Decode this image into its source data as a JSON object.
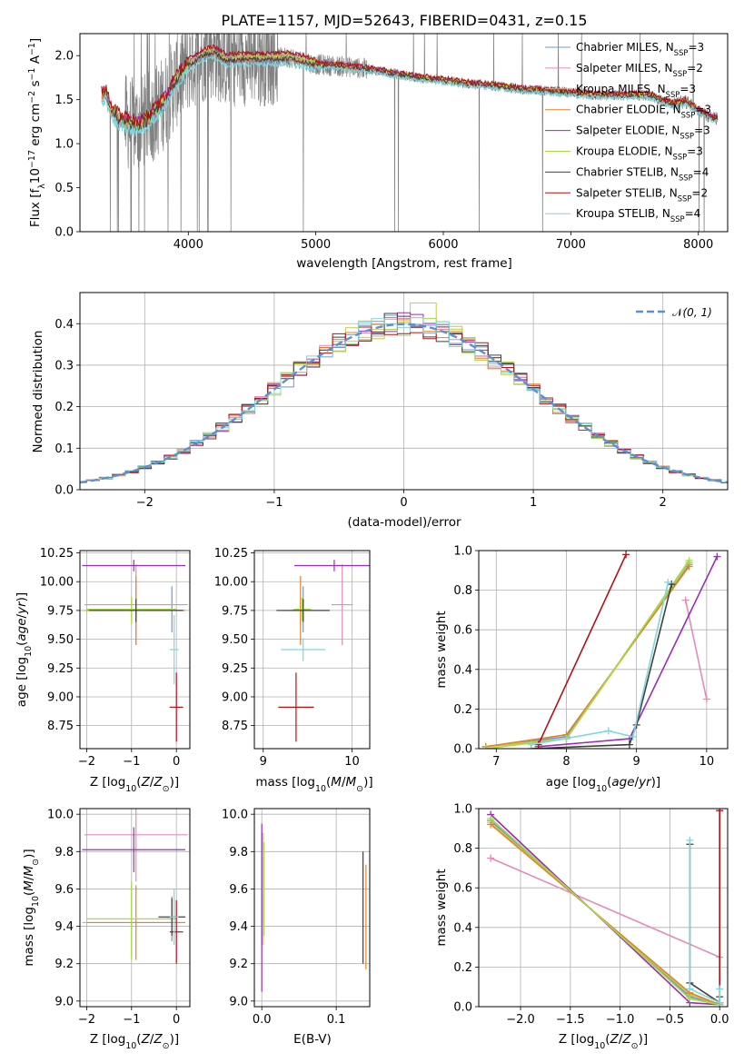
{
  "colors": {
    "Chabrier MILES": "#6f97d8",
    "Salpeter MILES": "#e48ab8",
    "Kroupa MILES": "#c5cc3a",
    "Chabrier ELODIE": "#e0842e",
    "Salpeter ELODIE": "#9a2eb5",
    "Kroupa ELODIE": "#a6d84a",
    "Chabrier STELIB": "#404040",
    "Salpeter STELIB": "#b0121a",
    "Kroupa STELIB": "#7fd6dc",
    "data": "#808080",
    "gaussian": "#5b8fd6"
  },
  "chart_data": [
    {
      "id": "spectrum",
      "type": "line",
      "title": "PLATE=1157, MJD=52643, FIBERID=0431, z=0.15",
      "xlabel": "wavelength [Angstrom, rest frame]",
      "ylabel": "Flux [f_λ10^-17 erg cm^-2 s^-1 A^-1]",
      "xlim": [
        3150,
        8230
      ],
      "ylim": [
        0,
        2.25
      ],
      "xticks": [
        4000,
        5000,
        6000,
        7000,
        8000
      ],
      "yticks": [
        0.0,
        0.5,
        1.0,
        1.5,
        2.0
      ],
      "grid": false,
      "legend_position": "upper right",
      "legend": [
        {
          "name": "Chabrier MILES",
          "nssp": "3"
        },
        {
          "name": "Salpeter MILES",
          "nssp": "2"
        },
        {
          "name": "Kroupa MILES",
          "nssp": "3"
        },
        {
          "name": "Chabrier ELODIE",
          "nssp": "3"
        },
        {
          "name": "Salpeter ELODIE",
          "nssp": "3"
        },
        {
          "name": "Kroupa ELODIE",
          "nssp": "3"
        },
        {
          "name": "Chabrier STELIB",
          "nssp": "4"
        },
        {
          "name": "Salpeter STELIB",
          "nssp": "2"
        },
        {
          "name": "Kroupa STELIB",
          "nssp": "4"
        }
      ],
      "model_curve": {
        "x": [
          3320,
          3350,
          3400,
          3500,
          3600,
          3700,
          3800,
          3900,
          4000,
          4100,
          4200,
          4300,
          4400,
          4600,
          4800,
          5000,
          5200,
          5400,
          5600,
          5800,
          6000,
          6200,
          6400,
          6600,
          6800,
          7000,
          7200,
          7400,
          7600,
          7700,
          7800,
          7900,
          8000,
          8100,
          8150
        ],
        "y": [
          1.55,
          1.58,
          1.35,
          1.25,
          1.2,
          1.3,
          1.45,
          1.7,
          1.9,
          2.0,
          2.05,
          1.95,
          1.97,
          1.97,
          1.98,
          1.9,
          1.88,
          1.85,
          1.8,
          1.75,
          1.72,
          1.68,
          1.66,
          1.62,
          1.6,
          1.58,
          1.55,
          1.55,
          1.55,
          1.5,
          1.45,
          1.48,
          1.38,
          1.3,
          1.28
        ]
      },
      "offsets": [
        -0.05,
        0.02,
        0.05,
        -0.03,
        0.06,
        0.04,
        -0.02,
        0.1,
        -0.12
      ]
    },
    {
      "id": "residuals",
      "type": "step",
      "xlabel": "(data-model)/error",
      "ylabel": "Normed distribution",
      "xlim": [
        -2.5,
        2.5
      ],
      "ylim": [
        0,
        0.475
      ],
      "xticks": [
        -2,
        -1,
        0,
        1,
        2
      ],
      "yticks": [
        0.0,
        0.1,
        0.2,
        0.3,
        0.4
      ],
      "grid": true,
      "legend_position": "upper right",
      "legend": [
        {
          "name": "N(0,1)"
        }
      ]
    },
    {
      "id": "age-vs-Z",
      "type": "errorbar",
      "xlabel": "Z [log10(Z/Z⊙)]",
      "ylabel": "age [log10(age/yr)]",
      "xlim": [
        -2.15,
        0.3
      ],
      "ylim": [
        8.55,
        10.27
      ],
      "xticks": [
        -2,
        -1,
        0
      ],
      "yticks": [
        8.75,
        9.0,
        9.25,
        9.5,
        9.75,
        10.0,
        10.25
      ],
      "grid": true,
      "points": [
        {
          "series": "Chabrier MILES",
          "x": -0.1,
          "y": 9.76,
          "xerr": 0.08,
          "yerr": 0.2
        },
        {
          "series": "Salpeter MILES",
          "x": -0.9,
          "y": 9.8,
          "xerr": 1.15,
          "yerr": 0.35
        },
        {
          "series": "Kroupa MILES",
          "x": -1.0,
          "y": 9.75,
          "xerr": 1.1,
          "yerr": 0.12
        },
        {
          "series": "Chabrier ELODIE",
          "x": -0.9,
          "y": 9.75,
          "xerr": 1.1,
          "yerr": 0.3
        },
        {
          "series": "Salpeter ELODIE",
          "x": -0.95,
          "y": 10.14,
          "xerr": 1.15,
          "yerr": 0.05
        },
        {
          "series": "Kroupa ELODIE",
          "x": -1.0,
          "y": 9.76,
          "xerr": 1.0,
          "yerr": 0.1
        },
        {
          "series": "Chabrier STELIB",
          "x": -0.9,
          "y": 9.75,
          "xerr": 1.05,
          "yerr": 0.1
        },
        {
          "series": "Salpeter STELIB",
          "x": 0.0,
          "y": 8.91,
          "xerr": 0.15,
          "yerr": 0.3
        },
        {
          "series": "Kroupa STELIB",
          "x": -0.05,
          "y": 9.41,
          "xerr": 0.1,
          "yerr": 0.3
        }
      ]
    },
    {
      "id": "age-vs-mass",
      "type": "errorbar",
      "xlabel": "mass [log10(M/M⊙)]",
      "ylabel": "",
      "xlim": [
        8.9,
        10.2
      ],
      "ylim": [
        8.55,
        10.27
      ],
      "xticks": [
        9,
        10
      ],
      "yticks": [
        8.75,
        9.0,
        9.25,
        9.5,
        9.75,
        10.0,
        10.25
      ],
      "grid": true,
      "points": [
        {
          "series": "Chabrier MILES",
          "x": 9.45,
          "y": 9.76,
          "xerr": 0.05,
          "yerr": 0.2
        },
        {
          "series": "Salpeter MILES",
          "x": 9.89,
          "y": 9.8,
          "xerr": 0.12,
          "yerr": 0.35
        },
        {
          "series": "Kroupa MILES",
          "x": 9.42,
          "y": 9.75,
          "xerr": 0.1,
          "yerr": 0.12
        },
        {
          "series": "Chabrier ELODIE",
          "x": 9.42,
          "y": 9.75,
          "xerr": 0.1,
          "yerr": 0.3
        },
        {
          "series": "Salpeter ELODIE",
          "x": 9.8,
          "y": 10.14,
          "xerr": 0.45,
          "yerr": 0.05
        },
        {
          "series": "Kroupa ELODIE",
          "x": 9.44,
          "y": 9.76,
          "xerr": 0.1,
          "yerr": 0.1
        },
        {
          "series": "Chabrier STELIB",
          "x": 9.45,
          "y": 9.75,
          "xerr": 0.3,
          "yerr": 0.1
        },
        {
          "series": "Salpeter STELIB",
          "x": 9.37,
          "y": 8.91,
          "xerr": 0.2,
          "yerr": 0.3
        },
        {
          "series": "Kroupa STELIB",
          "x": 9.45,
          "y": 9.41,
          "xerr": 0.25,
          "yerr": 0.1
        }
      ]
    },
    {
      "id": "weight-vs-age",
      "type": "line",
      "xlabel": "age [log10(age/yr)]",
      "ylabel": "mass weight",
      "xlim": [
        6.75,
        10.3
      ],
      "ylim": [
        0,
        1.0
      ],
      "xticks": [
        7,
        8,
        9,
        10
      ],
      "yticks": [
        0.0,
        0.2,
        0.4,
        0.6,
        0.8,
        1.0
      ],
      "grid": true,
      "series": [
        {
          "name": "Chabrier MILES",
          "x": [
            6.85,
            8.0,
            9.75
          ],
          "y": [
            0.01,
            0.06,
            0.93
          ]
        },
        {
          "name": "Salpeter MILES",
          "x": [
            9.7,
            10.0
          ],
          "y": [
            0.75,
            0.25
          ]
        },
        {
          "name": "Kroupa MILES",
          "x": [
            6.85,
            8.0,
            9.75
          ],
          "y": [
            0.01,
            0.05,
            0.94
          ]
        },
        {
          "name": "Chabrier ELODIE",
          "x": [
            6.85,
            8.0,
            9.75
          ],
          "y": [
            0.01,
            0.07,
            0.92
          ]
        },
        {
          "name": "Salpeter ELODIE",
          "x": [
            7.6,
            8.9,
            10.15
          ],
          "y": [
            0.01,
            0.05,
            0.97
          ]
        },
        {
          "name": "Kroupa ELODIE",
          "x": [
            6.85,
            8.0,
            9.75
          ],
          "y": [
            0.0,
            0.05,
            0.95
          ]
        },
        {
          "name": "Chabrier STELIB",
          "x": [
            7.5,
            8.9,
            9.0,
            9.5
          ],
          "y": [
            0.0,
            0.02,
            0.12,
            0.83
          ]
        },
        {
          "name": "Salpeter STELIB",
          "x": [
            7.6,
            8.85
          ],
          "y": [
            0.02,
            0.98
          ]
        },
        {
          "name": "Kroupa STELIB",
          "x": [
            7.5,
            8.6,
            8.95,
            9.45
          ],
          "y": [
            0.02,
            0.09,
            0.06,
            0.84
          ]
        }
      ]
    },
    {
      "id": "mass-vs-Z",
      "type": "errorbar",
      "xlabel": "Z [log10(Z/Z⊙)]",
      "ylabel": "mass [log10(M/M⊙)]",
      "xlim": [
        -2.15,
        0.3
      ],
      "ylim": [
        8.97,
        10.03
      ],
      "xticks": [
        -2,
        -1,
        0
      ],
      "yticks": [
        9.0,
        9.2,
        9.4,
        9.6,
        9.8,
        10.0
      ],
      "grid": true,
      "points": [
        {
          "series": "Chabrier MILES",
          "x": -0.1,
          "y": 9.44,
          "xerr": 0.1,
          "yerr": 0.12
        },
        {
          "series": "Salpeter MILES",
          "x": -0.9,
          "y": 9.89,
          "xerr": 1.15,
          "yerr": 0.25
        },
        {
          "series": "Kroupa MILES",
          "x": -1.0,
          "y": 9.42,
          "xerr": 1.1,
          "yerr": 0.2
        },
        {
          "series": "Chabrier ELODIE",
          "x": -0.9,
          "y": 9.42,
          "xerr": 1.1,
          "yerr": 0.2
        },
        {
          "series": "Salpeter ELODIE",
          "x": -0.95,
          "y": 9.81,
          "xerr": 1.15,
          "yerr": 0.12
        },
        {
          "series": "Kroupa ELODIE",
          "x": -1.0,
          "y": 9.44,
          "xerr": 1.0,
          "yerr": 0.2
        },
        {
          "series": "Chabrier STELIB",
          "x": -0.1,
          "y": 9.45,
          "xerr": 0.3,
          "yerr": 0.1
        },
        {
          "series": "Salpeter STELIB",
          "x": 0.0,
          "y": 9.37,
          "xerr": 0.15,
          "yerr": 0.17
        },
        {
          "series": "Kroupa STELIB",
          "x": -0.05,
          "y": 9.45,
          "xerr": 0.1,
          "yerr": 0.15
        }
      ]
    },
    {
      "id": "mass-vs-EBV",
      "type": "errorbar",
      "xlabel": "E(B-V)",
      "ylabel": "",
      "xlim": [
        -0.01,
        0.145
      ],
      "ylim": [
        8.97,
        10.03
      ],
      "xticks": [
        0.0,
        0.1
      ],
      "yticks": [
        9.0,
        9.2,
        9.4,
        9.6,
        9.8,
        10.0
      ],
      "grid": true,
      "points": [
        {
          "series": "Chabrier MILES",
          "x": 0.0,
          "y": 9.6,
          "yerr": 0.3
        },
        {
          "series": "Kroupa MILES",
          "x": 0.002,
          "y": 9.6,
          "yerr": 0.3
        },
        {
          "series": "Salpeter ELODIE",
          "x": 0.0,
          "y": 9.5,
          "yerr": 0.45
        },
        {
          "series": "Kroupa ELODIE",
          "x": 0.003,
          "y": 9.6,
          "yerr": 0.25
        },
        {
          "series": "Chabrier STELIB",
          "x": 0.136,
          "y": 9.5,
          "yerr": 0.3
        },
        {
          "series": "Chabrier ELODIE",
          "x": 0.14,
          "y": 9.45,
          "yerr": 0.28
        }
      ]
    },
    {
      "id": "weight-vs-Z",
      "type": "line",
      "xlabel": "Z [log10(Z/Z⊙)]",
      "ylabel": "mass weight",
      "xlim": [
        -2.42,
        0.08
      ],
      "ylim": [
        0,
        1.0
      ],
      "xticks": [
        -2.0,
        -1.5,
        -1.0,
        -0.5,
        0.0
      ],
      "yticks": [
        0.0,
        0.2,
        0.4,
        0.6,
        0.8,
        1.0
      ],
      "grid": true,
      "series": [
        {
          "name": "Chabrier MILES",
          "x": [
            -2.3,
            -0.3,
            0.0
          ],
          "y": [
            0.94,
            0.05,
            0.01
          ]
        },
        {
          "name": "Salpeter MILES",
          "x": [
            -2.3,
            0.0
          ],
          "y": [
            0.75,
            0.25
          ]
        },
        {
          "name": "Kroupa MILES",
          "x": [
            -2.3,
            -0.3,
            0.0
          ],
          "y": [
            0.93,
            0.06,
            0.01
          ]
        },
        {
          "name": "Chabrier ELODIE",
          "x": [
            -2.3,
            -0.3,
            0.0
          ],
          "y": [
            0.92,
            0.07,
            0.01
          ]
        },
        {
          "name": "Salpeter ELODIE",
          "x": [
            -2.3,
            -0.3,
            0.0
          ],
          "y": [
            0.97,
            0.02,
            0.01
          ]
        },
        {
          "name": "Kroupa ELODIE",
          "x": [
            -2.3,
            -0.3,
            0.0
          ],
          "y": [
            0.95,
            0.04,
            0.01
          ]
        },
        {
          "name": "Chabrier STELIB",
          "x": [
            -0.3,
            -0.3,
            0.0,
            0.0
          ],
          "y": [
            0.82,
            0.12,
            0.02,
            0.05
          ]
        },
        {
          "name": "Salpeter STELIB",
          "x": [
            0.0,
            0.0
          ],
          "y": [
            0.02,
            0.99
          ]
        },
        {
          "name": "Kroupa STELIB",
          "x": [
            -0.3,
            -0.3,
            0.0,
            0.0
          ],
          "y": [
            0.84,
            0.09,
            0.02,
            0.09
          ]
        }
      ]
    }
  ]
}
